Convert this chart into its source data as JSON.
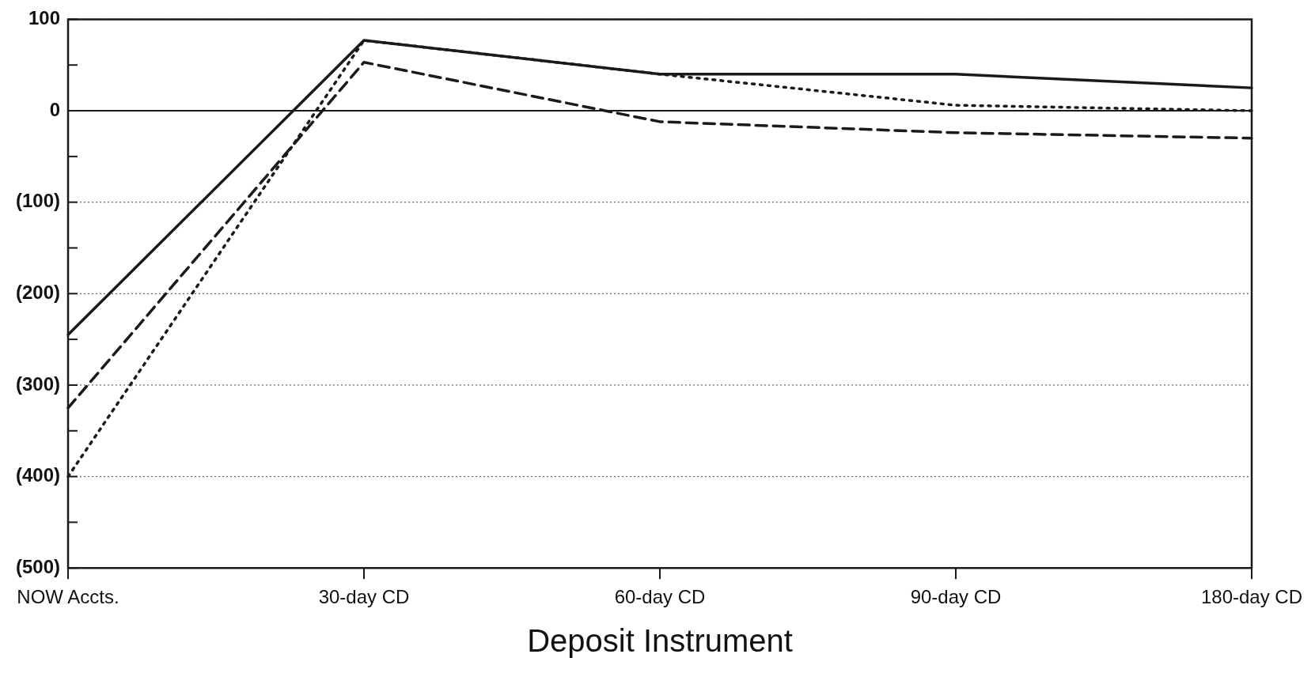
{
  "chart_data": {
    "type": "line",
    "xlabel": "Deposit Instrument",
    "categories": [
      "NOW Accts.",
      "30-day CD",
      "60-day CD",
      "90-day CD",
      "180-day CD"
    ],
    "series": [
      {
        "color": "#1a1a1a",
        "line_style": "solid",
        "values": [
          -245,
          77,
          40,
          40,
          25
        ]
      },
      {
        "color": "#1a1a1a",
        "line_style": "dashed",
        "values": [
          -325,
          53,
          -12,
          -24,
          -30
        ]
      },
      {
        "color": "#1a1a1a",
        "line_style": "dotted",
        "values": [
          -400,
          77,
          40,
          6,
          0
        ]
      }
    ],
    "ylim": [
      -500,
      100
    ],
    "yticks": [
      100,
      {
        "value": 50,
        "label": null
      },
      0,
      {
        "value": -50,
        "label": null
      },
      {
        "value": -100,
        "label": "(100)"
      },
      {
        "value": -150,
        "label": null
      },
      {
        "value": -200,
        "label": "(200)"
      },
      {
        "value": -250,
        "label": null
      },
      {
        "value": -300,
        "label": "(300)"
      },
      {
        "value": -350,
        "label": null
      },
      {
        "value": -400,
        "label": "(400)"
      },
      {
        "value": -450,
        "label": null
      },
      {
        "value": -500,
        "label": "(500)"
      }
    ],
    "ref_lines": [
      {
        "axis": "y",
        "value": 0,
        "color": "#1a1a1a",
        "line_style": "solid"
      }
    ],
    "grid": "y",
    "marker": "none",
    "legend": false
  }
}
